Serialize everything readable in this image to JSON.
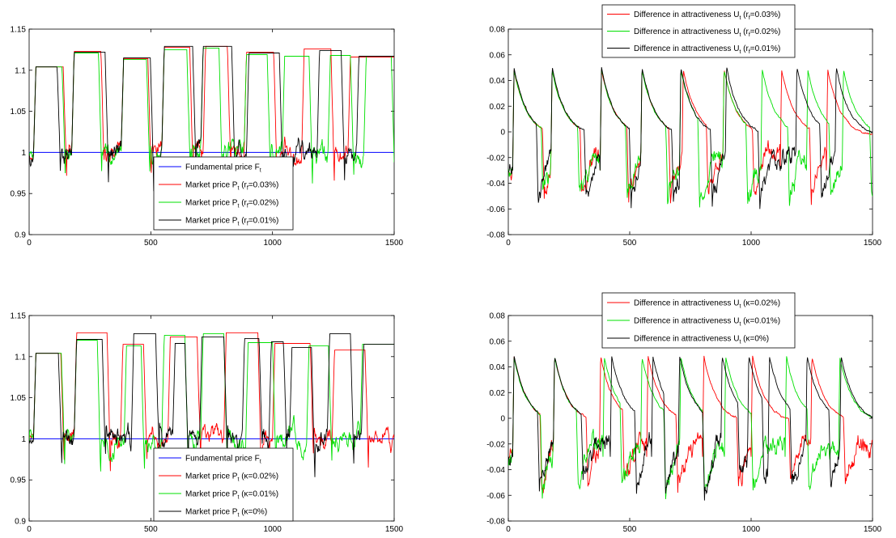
{
  "colors": {
    "blue": "#0000ff",
    "red": "#ff0000",
    "green": "#00e000",
    "black": "#000000"
  },
  "chart_data": [
    {
      "type": "line",
      "xlim": [
        0,
        1500
      ],
      "ylim": [
        0.9,
        1.15
      ],
      "xticks": [
        "0",
        "500",
        "1000",
        "1500"
      ],
      "yticks": [
        "0.9",
        "0.95",
        "1",
        "1.05",
        "1.1",
        "1.15"
      ],
      "legend_position": "bottom-center",
      "noise": 0.012,
      "decay_len": 12,
      "series": [
        {
          "name": "Fundamental price F",
          "sub": "t",
          "tail": "",
          "color": "#0000ff",
          "constant": 1.0
        },
        {
          "name": "Market price P",
          "sub": "t",
          "tail": " (r",
          "sub2": "f",
          "tail2": "=0.03%)",
          "color": "#ff0000",
          "seed": 11,
          "bubbles": [
            [
              18,
              140,
              1.104
            ],
            [
              175,
              295,
              1.123
            ],
            [
              378,
              488,
              1.114
            ],
            [
              545,
              660,
              1.128
            ],
            [
              715,
              815,
              1.129
            ],
            [
              883,
              1005,
              1.122
            ],
            [
              1120,
              1240,
              1.126
            ],
            [
              1310,
              1500,
              1.116
            ]
          ]
        },
        {
          "name": "Market price P",
          "sub": "t",
          "tail": " (r",
          "sub2": "f",
          "tail2": "=0.02%)",
          "color": "#00e000",
          "seed": 23,
          "bubbles": [
            [
              18,
              135,
              1.104
            ],
            [
              175,
              285,
              1.121
            ],
            [
              378,
              482,
              1.113
            ],
            [
              545,
              648,
              1.125
            ],
            [
              705,
              780,
              1.127
            ],
            [
              883,
              978,
              1.119
            ],
            [
              1040,
              1150,
              1.117
            ],
            [
              1228,
              1320,
              1.118
            ],
            [
              1375,
              1488,
              1.117
            ]
          ]
        },
        {
          "name": "Market price P",
          "sub": "t",
          "tail": " (r",
          "sub2": "f",
          "tail2": "=0.01%)",
          "color": "#000000",
          "seed": 37,
          "bubbles": [
            [
              18,
              115,
              1.104
            ],
            [
              175,
              312,
              1.122
            ],
            [
              378,
              498,
              1.115
            ],
            [
              545,
              672,
              1.129
            ],
            [
              705,
              832,
              1.129
            ],
            [
              893,
              1028,
              1.121
            ],
            [
              1183,
              1282,
              1.124
            ],
            [
              1345,
              1500,
              1.117
            ]
          ]
        }
      ]
    },
    {
      "type": "line",
      "xlim": [
        0,
        1500
      ],
      "ylim": [
        -0.08,
        0.08
      ],
      "xticks": [
        "0",
        "500",
        "1000",
        "1500"
      ],
      "yticks": [
        "-0.08",
        "-0.06",
        "-0.04",
        "-0.02",
        "0",
        "0.02",
        "0.04",
        "0.06",
        "0.08"
      ],
      "legend_position": "top-center",
      "noise": 0.004,
      "series": [
        {
          "name": "Difference in attractiveness U",
          "sub": "t",
          "tail": " (r",
          "sub2": "f",
          "tail2": "=0.03%)",
          "color": "#ff0000",
          "seed": 11,
          "peak": 0.058,
          "min": -0.052,
          "bubbles": [
            [
              18,
              140,
              1
            ],
            [
              175,
              295,
              1
            ],
            [
              378,
              488,
              1
            ],
            [
              545,
              660,
              1
            ],
            [
              715,
              815,
              1
            ],
            [
              883,
              1005,
              1
            ],
            [
              1120,
              1240,
              1
            ],
            [
              1310,
              1500,
              1
            ]
          ]
        },
        {
          "name": "Difference in attractiveness U",
          "sub": "t",
          "tail": " (r",
          "sub2": "f",
          "tail2": "=0.02%)",
          "color": "#00e000",
          "seed": 23,
          "peak": 0.058,
          "min": -0.055,
          "bubbles": [
            [
              18,
              135,
              1
            ],
            [
              175,
              285,
              1
            ],
            [
              378,
              482,
              1
            ],
            [
              545,
              648,
              1
            ],
            [
              705,
              780,
              1
            ],
            [
              883,
              978,
              1
            ],
            [
              1040,
              1150,
              1
            ],
            [
              1228,
              1320,
              1
            ],
            [
              1375,
              1488,
              1
            ]
          ]
        },
        {
          "name": "Difference in attractiveness U",
          "sub": "t",
          "tail": " (r",
          "sub2": "f",
          "tail2": "=0.01%)",
          "color": "#000000",
          "seed": 37,
          "peak": 0.06,
          "min": -0.055,
          "bubbles": [
            [
              18,
              115,
              1
            ],
            [
              175,
              312,
              1
            ],
            [
              378,
              498,
              1
            ],
            [
              545,
              672,
              1
            ],
            [
              705,
              832,
              1
            ],
            [
              893,
              1028,
              1
            ],
            [
              1183,
              1282,
              1
            ],
            [
              1345,
              1500,
              1
            ]
          ]
        }
      ]
    },
    {
      "type": "line",
      "xlim": [
        0,
        1500
      ],
      "ylim": [
        0.9,
        1.15
      ],
      "xticks": [
        "0",
        "500",
        "1000",
        "1500"
      ],
      "yticks": [
        "0.9",
        "0.95",
        "1",
        "1.05",
        "1.1",
        "1.15"
      ],
      "legend_position": "bottom-center",
      "noise": 0.012,
      "decay_len": 12,
      "series": [
        {
          "name": "Fundamental price F",
          "sub": "t",
          "tail": "",
          "color": "#0000ff",
          "constant": 1.0
        },
        {
          "name": "Market price P",
          "sub": "t",
          "tail": " (κ=0.02%)",
          "color": "#ff0000",
          "seed": 51,
          "bubbles": [
            [
              18,
              130,
              1.104
            ],
            [
              185,
              320,
              1.129
            ],
            [
              375,
              470,
              1.115
            ],
            [
              570,
              690,
              1.124
            ],
            [
              800,
              940,
              1.129
            ],
            [
              1000,
              1155,
              1.116
            ],
            [
              1245,
              1380,
              1.108
            ]
          ]
        },
        {
          "name": "Market price P",
          "sub": "t",
          "tail": " (κ=0.01%)",
          "color": "#00e000",
          "seed": 63,
          "bubbles": [
            [
              18,
              132,
              1.104
            ],
            [
              185,
              280,
              1.12
            ],
            [
              390,
              460,
              1.113
            ],
            [
              545,
              640,
              1.126
            ],
            [
              705,
              800,
              1.128
            ],
            [
              890,
              1000,
              1.117
            ],
            [
              1140,
              1230,
              1.113
            ],
            [
              1360,
              1500,
              1.115
            ]
          ]
        },
        {
          "name": "Market price P",
          "sub": "t",
          "tail": " (κ=0%)",
          "color": "#000000",
          "seed": 77,
          "bubbles": [
            [
              18,
              120,
              1.104
            ],
            [
              185,
              300,
              1.121
            ],
            [
              420,
              520,
              1.128
            ],
            [
              590,
              640,
              1.116
            ],
            [
              700,
              800,
              1.124
            ],
            [
              875,
              945,
              1.122
            ],
            [
              985,
              1045,
              1.118
            ],
            [
              1070,
              1160,
              1.111
            ],
            [
              1225,
              1320,
              1.128
            ],
            [
              1365,
              1500,
              1.115
            ]
          ]
        }
      ]
    },
    {
      "type": "line",
      "xlim": [
        0,
        1500
      ],
      "ylim": [
        -0.08,
        0.08
      ],
      "xticks": [
        "0",
        "500",
        "1000",
        "1500"
      ],
      "yticks": [
        "-0.08",
        "-0.06",
        "-0.04",
        "-0.02",
        "0",
        "0.02",
        "0.04",
        "0.06",
        "0.08"
      ],
      "legend_position": "top-center",
      "noise": 0.004,
      "series": [
        {
          "name": "Difference in attractiveness U",
          "sub": "t",
          "tail": " (κ=0.02%)",
          "color": "#ff0000",
          "seed": 51,
          "peak": 0.058,
          "min": -0.055,
          "bubbles": [
            [
              18,
              130,
              1
            ],
            [
              185,
              320,
              1
            ],
            [
              375,
              470,
              1
            ],
            [
              570,
              690,
              1
            ],
            [
              800,
              940,
              1
            ],
            [
              1000,
              1155,
              1
            ],
            [
              1245,
              1380,
              1
            ]
          ]
        },
        {
          "name": "Difference in attractiveness U",
          "sub": "t",
          "tail": " (κ=0.01%)",
          "color": "#00e000",
          "seed": 63,
          "peak": 0.057,
          "min": -0.058,
          "bubbles": [
            [
              18,
              132,
              1
            ],
            [
              185,
              280,
              1
            ],
            [
              390,
              460,
              1
            ],
            [
              545,
              640,
              1
            ],
            [
              705,
              800,
              1
            ],
            [
              890,
              1000,
              1
            ],
            [
              1140,
              1230,
              1
            ],
            [
              1360,
              1500,
              1
            ]
          ]
        },
        {
          "name": "Difference in attractiveness U",
          "sub": "t",
          "tail": " (κ=0%)",
          "color": "#000000",
          "seed": 77,
          "peak": 0.058,
          "min": -0.055,
          "bubbles": [
            [
              18,
              120,
              1
            ],
            [
              185,
              300,
              1
            ],
            [
              420,
              520,
              1
            ],
            [
              590,
              640,
              1
            ],
            [
              700,
              800,
              1
            ],
            [
              875,
              945,
              1
            ],
            [
              985,
              1045,
              1
            ],
            [
              1070,
              1160,
              1
            ],
            [
              1225,
              1320,
              1
            ],
            [
              1365,
              1500,
              1
            ]
          ]
        }
      ]
    }
  ]
}
